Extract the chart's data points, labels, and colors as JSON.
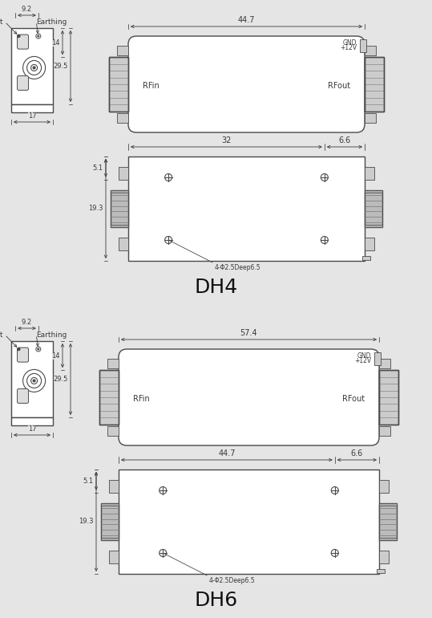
{
  "bg_color": "#e5e5e5",
  "line_color": "#4a4a4a",
  "text_color": "#3a3a3a",
  "title_color": "#111111",
  "lw_main": 1.0,
  "lw_thin": 0.6,
  "dh4": {
    "label": "DH4",
    "front_top_dim": "44.7",
    "bot_dim1": "32",
    "bot_dim2": "6.6",
    "side_dim_h": "9.2",
    "side_dim_14": "14",
    "side_dim_295": "29.5",
    "side_dim_17": "17",
    "bot_dim_51": "5.1",
    "bot_dim_193": "19.3",
    "hole_note": "4-Φ2.5Deep6.5"
  },
  "dh6": {
    "label": "DH6",
    "front_top_dim": "57.4",
    "bot_dim1": "44.7",
    "bot_dim2": "6.6",
    "side_dim_h": "9.2",
    "side_dim_14": "14",
    "side_dim_295": "29.5",
    "side_dim_17": "17",
    "bot_dim_51": "5.1",
    "bot_dim_193": "19.3",
    "hole_note": "4-Φ2.5Deep6.5"
  }
}
